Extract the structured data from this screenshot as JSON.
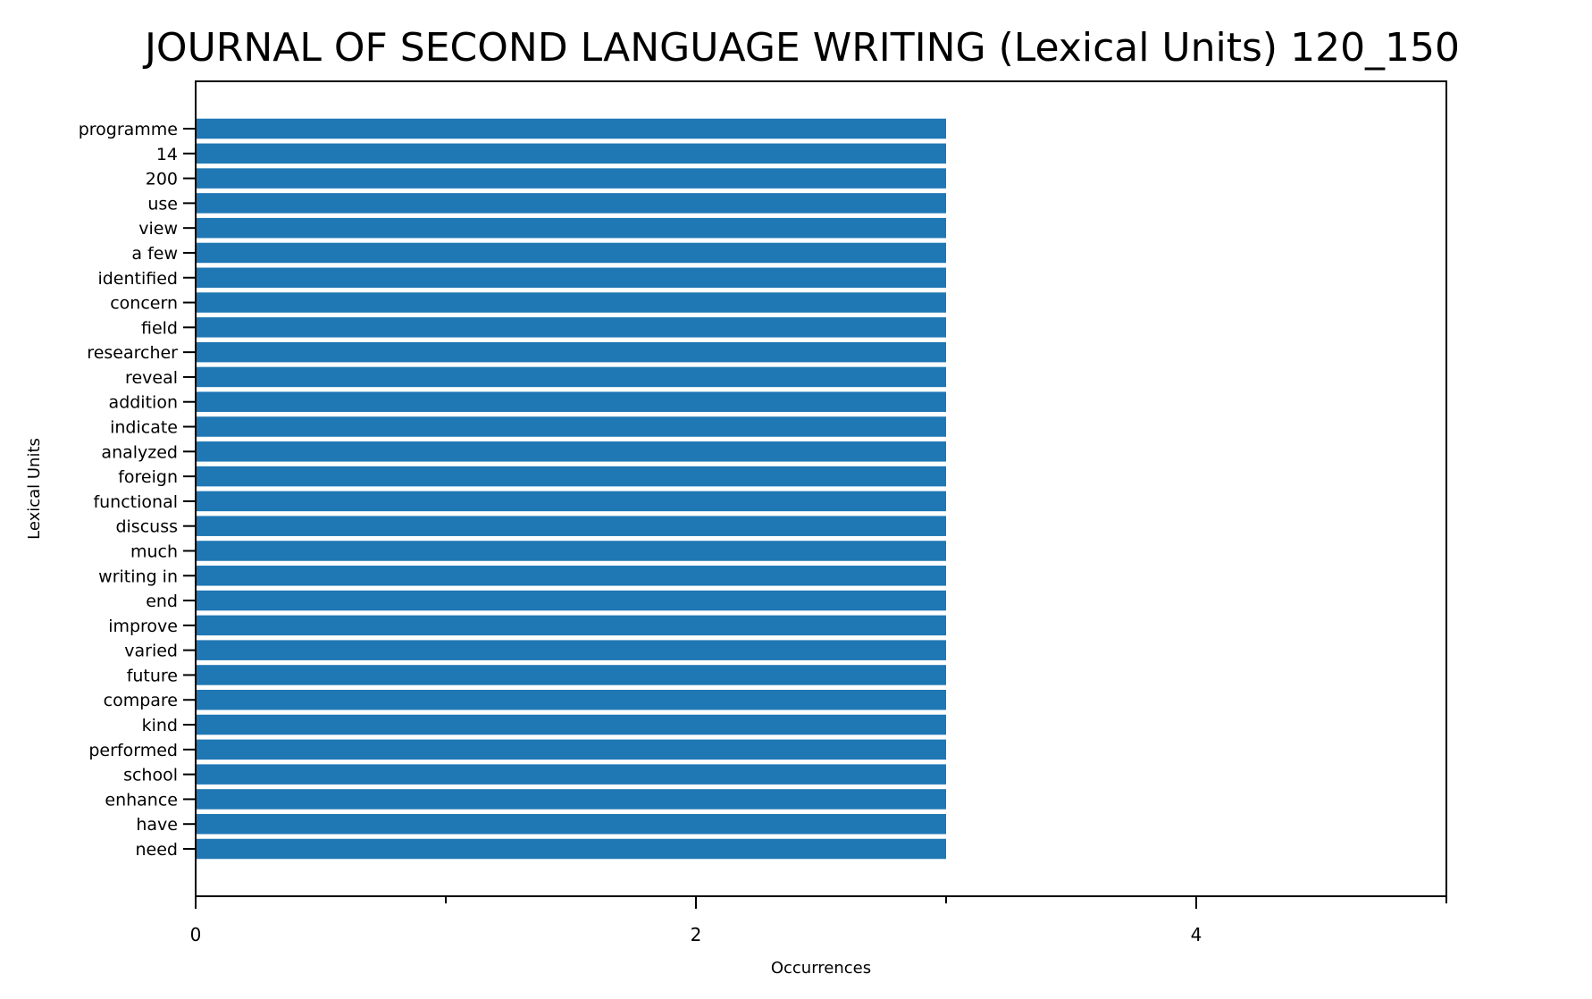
{
  "chart_data": {
    "type": "bar",
    "orientation": "horizontal",
    "title": "JOURNAL OF SECOND LANGUAGE WRITING (Lexical Units) 120_150",
    "xlabel": "Occurrences",
    "ylabel": "Lexical Units",
    "xlim": [
      0,
      5
    ],
    "x_ticks_major": [
      0,
      2,
      4
    ],
    "x_ticks_minor": [
      1,
      3,
      5
    ],
    "grid": false,
    "bar_color": "#1f77b4",
    "categories": [
      "programme",
      "14",
      "200",
      "use",
      "view",
      "a few",
      "identified",
      "concern",
      "field",
      "researcher",
      "reveal",
      "addition",
      "indicate",
      "analyzed",
      "foreign",
      "functional",
      "discuss",
      "much",
      "writing in",
      "end",
      "improve",
      "varied",
      "future",
      "compare",
      "kind",
      "performed",
      "school",
      "enhance",
      "have",
      "need"
    ],
    "values": [
      3,
      3,
      3,
      3,
      3,
      3,
      3,
      3,
      3,
      3,
      3,
      3,
      3,
      3,
      3,
      3,
      3,
      3,
      3,
      3,
      3,
      3,
      3,
      3,
      3,
      3,
      3,
      3,
      3,
      3
    ]
  }
}
